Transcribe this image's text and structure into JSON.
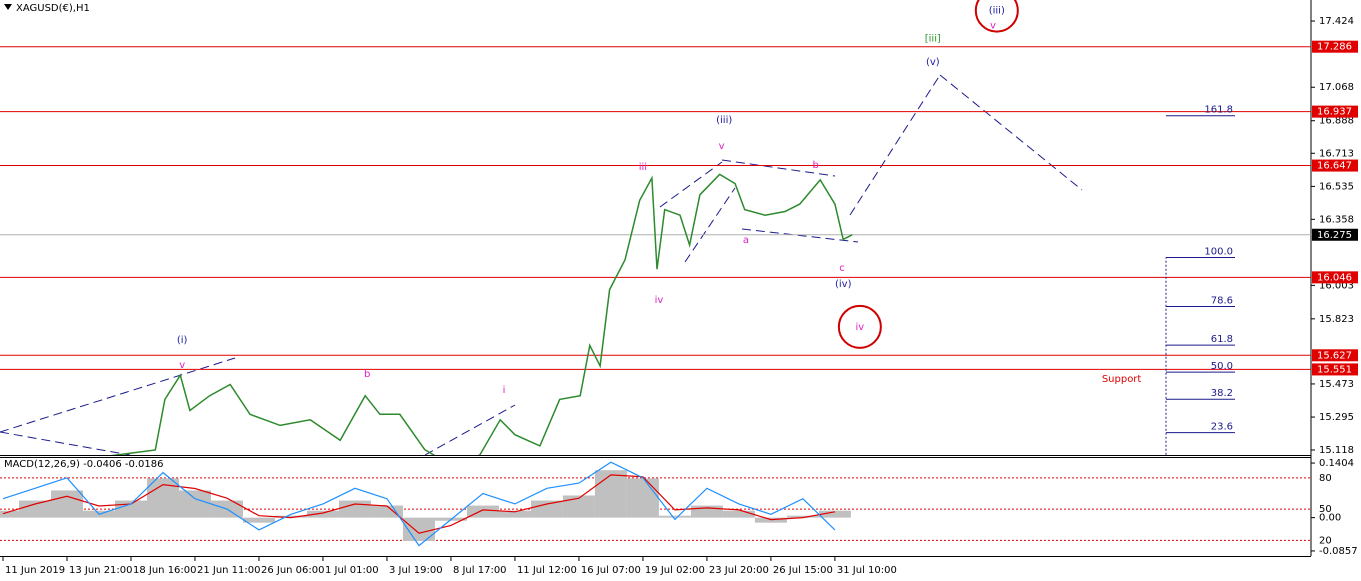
{
  "chart_data": [
    {
      "type": "line",
      "title": "XAGUSD(€),H1",
      "color": "#2d8a2d",
      "x": [
        -0.04,
        2.38,
        2.53,
        2.77,
        2.92,
        3.23,
        3.55,
        3.86,
        4.33,
        4.8,
        5.27,
        5.66,
        5.89,
        6.2,
        6.59,
        6.98,
        7.45,
        7.77,
        8.0,
        8.39,
        8.7,
        9.02,
        9.17,
        9.33,
        9.48,
        9.72,
        9.95,
        10.14,
        10.22,
        10.34,
        10.58,
        10.73,
        10.89,
        11.2,
        11.44,
        11.59,
        11.91,
        12.22,
        12.45,
        12.77,
        13.0,
        13.13,
        13.27
      ],
      "values": [
        15.01,
        15.118,
        15.39,
        15.52,
        15.33,
        15.41,
        15.47,
        15.31,
        15.25,
        15.28,
        15.17,
        15.41,
        15.31,
        15.31,
        15.12,
        15.04,
        15.09,
        15.28,
        15.2,
        15.14,
        15.39,
        15.41,
        15.68,
        15.57,
        15.98,
        16.14,
        16.46,
        16.58,
        16.09,
        16.41,
        16.38,
        16.22,
        16.49,
        16.6,
        16.55,
        16.41,
        16.38,
        16.4,
        16.44,
        16.57,
        16.44,
        16.25,
        16.275
      ],
      "xlim": [
        -0.047,
        20.44
      ],
      "ylim": [
        15.091,
        17.537
      ],
      "yticks": [
        17.424,
        17.068,
        16.888,
        16.713,
        16.535,
        16.358,
        16.003,
        15.823,
        15.473,
        15.295,
        15.118
      ],
      "xticks": [
        {
          "value": 0,
          "label": "11 Jun 2019"
        },
        {
          "value": 1,
          "label": "13 Jun 21:00"
        },
        {
          "value": 2,
          "label": "18 Jun 16:00"
        },
        {
          "value": 3,
          "label": "21 Jun 11:00"
        },
        {
          "value": 4,
          "label": "26 Jun 06:00"
        },
        {
          "value": 5,
          "label": "1 Jul 01:00"
        },
        {
          "value": 6,
          "label": "3 Jul 19:00"
        },
        {
          "value": 7,
          "label": "8 Jul 17:00"
        },
        {
          "value": 8,
          "label": "11 Jul 12:00"
        },
        {
          "value": 9,
          "label": "16 Jul 07:00"
        },
        {
          "value": 10,
          "label": "19 Jul 02:00"
        },
        {
          "value": 11,
          "label": "23 Jul 20:00"
        },
        {
          "value": 12,
          "label": "26 Jul 15:00"
        },
        {
          "value": 13,
          "label": "31 Jul 10:00"
        }
      ],
      "levels": [
        17.286,
        16.937,
        16.647,
        16.046,
        15.627,
        15.551
      ],
      "level_color": "#e00000",
      "current_price": 16.275,
      "fib": {
        "levels": [
          161.8,
          {
            "value": 100,
            "label": "100.0"
          },
          78.6,
          61.8,
          {
            "value": 50,
            "label": "50.0"
          },
          38.2,
          23.6
        ],
        "range": [
          14.92,
          16.153
        ],
        "color": "#1a1a8c"
      },
      "annotations": [
        {
          "text": "(i)",
          "color": "#1a1aa0",
          "x": 2.8,
          "y": 15.709
        },
        {
          "text": "v",
          "color": "#e020c8",
          "x": 2.8,
          "y": 15.575
        },
        {
          "text": "b",
          "color": "#e020c8",
          "x": 5.69,
          "y": 15.527
        },
        {
          "text": "i",
          "color": "#e020c8",
          "x": 7.83,
          "y": 15.44
        },
        {
          "text": "iii",
          "color": "#e020c8",
          "x": 10.0,
          "y": 16.64
        },
        {
          "text": "iv",
          "color": "#e020c8",
          "x": 10.25,
          "y": 15.925
        },
        {
          "text": "(iii)",
          "color": "#1a1aa0",
          "x": 11.27,
          "y": 16.892
        },
        {
          "text": "v",
          "color": "#e020c8",
          "x": 11.23,
          "y": 16.752
        },
        {
          "text": "a",
          "color": "#e020c8",
          "x": 11.61,
          "y": 16.247
        },
        {
          "text": "b",
          "color": "#e020c8",
          "x": 12.7,
          "y": 16.65
        },
        {
          "text": "c",
          "color": "#e020c8",
          "x": 13.11,
          "y": 16.096
        },
        {
          "text": "(iv)",
          "color": "#1a1aa0",
          "x": 13.13,
          "y": 16.01
        },
        {
          "text": "iv",
          "color": "#e020c8",
          "x": 13.39,
          "y": 15.78,
          "circle": "#d00000"
        },
        {
          "text": "[iii]",
          "color": "#2a9a2a",
          "x": 14.53,
          "y": 17.33
        },
        {
          "text": "(v)",
          "color": "#1a1aa0",
          "x": 14.53,
          "y": 17.204
        },
        {
          "text": "(iii)",
          "color": "#1a1aa0",
          "x": 15.53,
          "y": 17.48,
          "circle": "#d00000"
        },
        {
          "text": "v",
          "color": "#e020c8",
          "x": 15.47,
          "y": 17.4
        },
        {
          "text": "Support",
          "color": "#e00000",
          "x": 17.48,
          "y": 15.5
        }
      ]
    },
    {
      "type": "macd",
      "label": "MACD(12,26,9) -0.0406 -0.0186",
      "x": [
        0,
        0.5,
        1,
        1.5,
        2,
        2.5,
        3,
        3.5,
        4,
        4.5,
        5,
        5.5,
        6,
        6.5,
        7,
        7.5,
        8,
        8.5,
        9,
        9.5,
        10,
        10.5,
        11,
        11.5,
        12,
        12.5,
        13
      ],
      "series": [
        {
          "kind": "histogram",
          "color": "#c0c0c0",
          "values": [
            0.018,
            0.044,
            0.07,
            0.018,
            0.044,
            0.101,
            0.07,
            0.044,
            -0.013,
            0.005,
            0.018,
            0.044,
            0.031,
            -0.06,
            -0.008,
            0.031,
            0.018,
            0.044,
            0.057,
            0.122,
            0.101,
            0.005,
            0.031,
            0.018,
            -0.013,
            0.005,
            0.018
          ]
        },
        {
          "kind": "line",
          "color": "#e00000",
          "values": [
            0.01,
            0.035,
            0.055,
            0.03,
            0.035,
            0.085,
            0.075,
            0.05,
            0.005,
            0.0,
            0.012,
            0.035,
            0.03,
            -0.04,
            -0.02,
            0.02,
            0.015,
            0.035,
            0.05,
            0.11,
            0.105,
            0.02,
            0.025,
            0.02,
            -0.005,
            0.0,
            0.015
          ]
        },
        {
          "kind": "line",
          "color": "#1e90ff",
          "axis": "y2",
          "values": [
            60,
            70,
            80,
            45,
            55,
            85,
            60,
            50,
            30,
            45,
            55,
            70,
            60,
            15,
            40,
            65,
            55,
            70,
            75,
            95,
            80,
            40,
            70,
            55,
            45,
            60,
            30
          ]
        }
      ],
      "xlim": [
        -0.047,
        20.44
      ],
      "ylim": [
        -0.0987,
        0.156
      ],
      "yticks": [
        0.1404,
        {
          "value": 0,
          "label": "0.00"
        },
        -0.0857
      ],
      "y2lim": [
        5,
        100
      ],
      "y2ticks": [
        80,
        50,
        20
      ],
      "y2grid_color": "#e00000"
    }
  ]
}
